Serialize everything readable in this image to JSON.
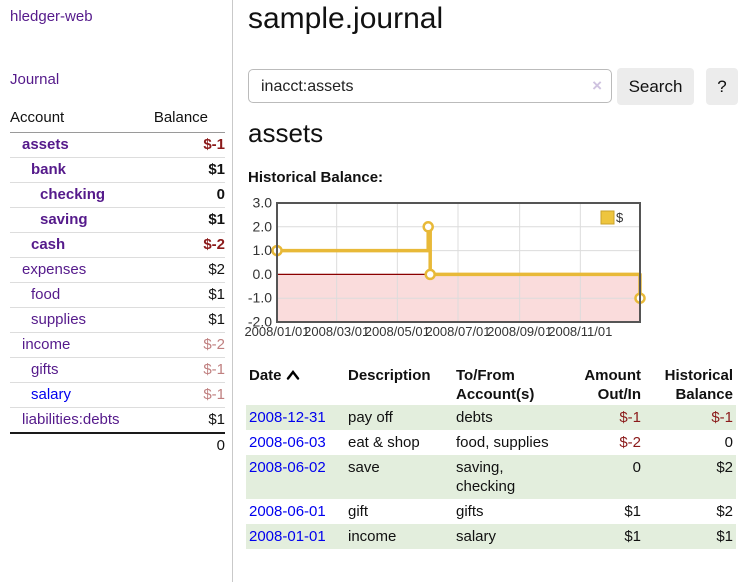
{
  "app": {
    "title": "hledger-web"
  },
  "colors": {
    "link_purple": "#551a8b",
    "link_blue": "#0000ee",
    "negative": "#8b1a1a",
    "negative_muted": "#c08080",
    "row_highlight_green": "#e3eedd",
    "chart_line_gold": "#e8b938",
    "chart_negative_fill": "#fadcdc",
    "chart_zero_line": "#8b0000"
  },
  "sidebar": {
    "journal_label": "Journal",
    "accounts_table": {
      "headers": [
        "Account",
        "Balance"
      ],
      "rows": [
        {
          "name": "assets",
          "depth": 1,
          "bold": true,
          "name_color": "purple",
          "balance": "$-1",
          "balance_color": "neg"
        },
        {
          "name": "bank",
          "depth": 2,
          "bold": true,
          "name_color": "purple",
          "balance": "$1",
          "balance_color": "black"
        },
        {
          "name": "checking",
          "depth": 3,
          "bold": true,
          "name_color": "purple",
          "balance": "0",
          "balance_color": "black"
        },
        {
          "name": "saving",
          "depth": 3,
          "bold": true,
          "name_color": "purple",
          "balance": "$1",
          "balance_color": "black"
        },
        {
          "name": "cash",
          "depth": 2,
          "bold": true,
          "name_color": "purple",
          "balance": "$-2",
          "balance_color": "neg"
        },
        {
          "name": "expenses",
          "depth": 1,
          "bold": false,
          "name_color": "purple",
          "balance": "$2",
          "balance_color": "black"
        },
        {
          "name": "food",
          "depth": 2,
          "bold": false,
          "name_color": "purple",
          "balance": "$1",
          "balance_color": "black"
        },
        {
          "name": "supplies",
          "depth": 2,
          "bold": false,
          "name_color": "purple",
          "balance": "$1",
          "balance_color": "black"
        },
        {
          "name": "income",
          "depth": 1,
          "bold": false,
          "name_color": "purple",
          "balance": "$-2",
          "balance_color": "muted"
        },
        {
          "name": "gifts",
          "depth": 2,
          "bold": false,
          "name_color": "purple",
          "balance": "$-1",
          "balance_color": "muted"
        },
        {
          "name": "salary",
          "depth": 2,
          "bold": false,
          "name_color": "blue",
          "balance": "$-1",
          "balance_color": "muted"
        },
        {
          "name": "liabilities:debts",
          "depth": 1,
          "bold": false,
          "name_color": "purple",
          "balance": "$1",
          "balance_color": "black"
        }
      ],
      "total": "0"
    }
  },
  "main": {
    "title": "sample.journal",
    "search": {
      "value": "inacct:assets",
      "clear_icon": "×",
      "button_label": "Search",
      "help_label": "?"
    },
    "account_heading": "assets",
    "register": {
      "headers": [
        {
          "l1": "Date",
          "l2": ""
        },
        {
          "l1": "Description",
          "l2": ""
        },
        {
          "l1": "To/From",
          "l2": "Account(s)"
        },
        {
          "l1": "Amount",
          "l2": "Out/In"
        },
        {
          "l1": "Historical",
          "l2": "Balance"
        }
      ],
      "sort": "date-ascending",
      "rows": [
        {
          "date": "2008-12-31",
          "description": "pay off",
          "accounts": "debts",
          "amount": "$-1",
          "amount_neg": true,
          "balance": "$-1",
          "balance_neg": true
        },
        {
          "date": "2008-06-03",
          "description": "eat & shop",
          "accounts": "food, supplies",
          "amount": "$-2",
          "amount_neg": true,
          "balance": "0",
          "balance_neg": false
        },
        {
          "date": "2008-06-02",
          "description": "save",
          "accounts": "saving, checking",
          "amount": "0",
          "amount_neg": false,
          "balance": "$2",
          "balance_neg": false
        },
        {
          "date": "2008-06-01",
          "description": "gift",
          "accounts": "gifts",
          "amount": "$1",
          "amount_neg": false,
          "balance": "$2",
          "balance_neg": false
        },
        {
          "date": "2008-01-01",
          "description": "income",
          "accounts": "salary",
          "amount": "$1",
          "amount_neg": false,
          "balance": "$1",
          "balance_neg": false
        }
      ]
    }
  },
  "chart_data": {
    "type": "line",
    "step": true,
    "title": "Historical Balance:",
    "series": [
      {
        "name": "$",
        "color": "#e8b938",
        "points": [
          {
            "x": "2008-01-01",
            "y": 1
          },
          {
            "x": "2008-06-01",
            "y": 2
          },
          {
            "x": "2008-06-03",
            "y": 0
          },
          {
            "x": "2008-12-31",
            "y": -1
          }
        ]
      }
    ],
    "x_ticks": [
      "2008/01/01",
      "2008/03/01",
      "2008/05/01",
      "2008/07/01",
      "2008/09/01",
      "2008/11/01"
    ],
    "y_ticks": [
      3.0,
      2.0,
      1.0,
      0.0,
      -1.0,
      -2.0
    ],
    "ylim": [
      -2,
      3
    ],
    "xlim": [
      "2008-01-01",
      "2008-12-31"
    ],
    "grid": true,
    "legend": {
      "position": "top-right",
      "label": "$"
    },
    "negative_region_fill": "#fadcdc",
    "zero_line_color": "#8b0000"
  }
}
